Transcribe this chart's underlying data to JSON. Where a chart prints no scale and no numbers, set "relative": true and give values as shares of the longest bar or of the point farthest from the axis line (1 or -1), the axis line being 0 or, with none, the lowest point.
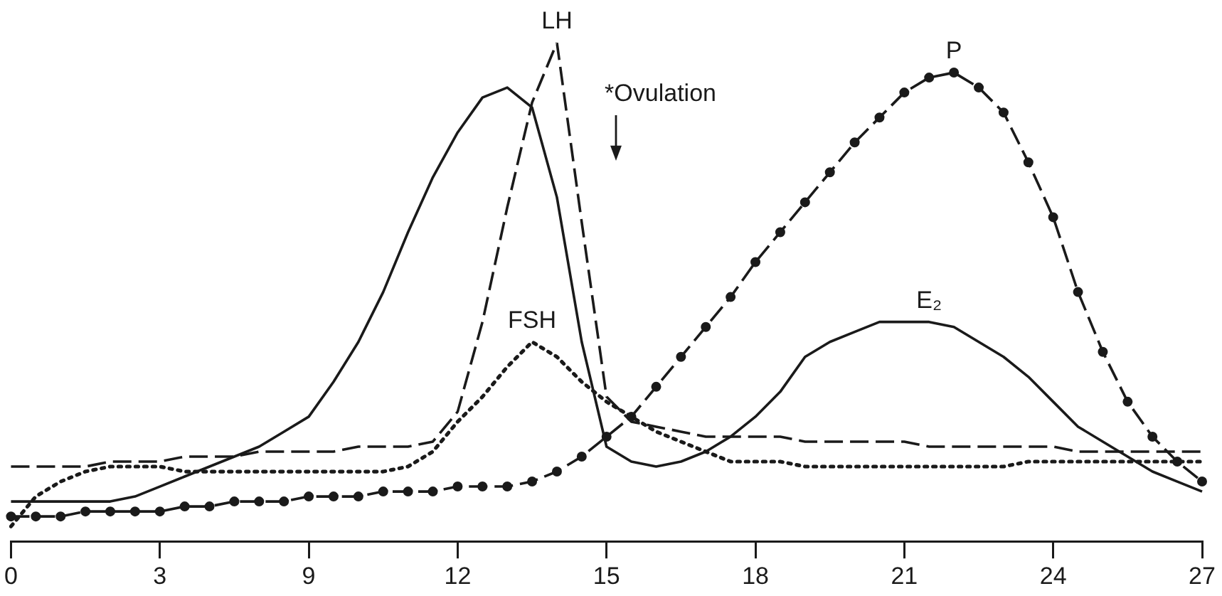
{
  "chart_data": {
    "type": "line",
    "relative": true,
    "grid": false,
    "legend": false,
    "tick_labels": "x",
    "categories": [
      "0",
      null,
      null,
      null,
      null,
      null,
      "3",
      null,
      null,
      null,
      null,
      null,
      "9",
      null,
      null,
      null,
      null,
      null,
      "12",
      null,
      null,
      null,
      null,
      null,
      "15",
      null,
      null,
      null,
      null,
      null,
      "18",
      null,
      null,
      null,
      null,
      null,
      "21",
      null,
      null,
      null,
      null,
      null,
      "24",
      null,
      null,
      null,
      null,
      null,
      "27"
    ],
    "annotations": [
      "*Ovulation"
    ],
    "series": [
      {
        "name": "E₂",
        "color": "#1a1a1a",
        "line_style": "solid",
        "marker": "none",
        "values": [
          0.08,
          0.08,
          0.08,
          0.08,
          0.08,
          0.09,
          0.11,
          0.13,
          0.15,
          0.17,
          0.19,
          0.22,
          0.25,
          0.32,
          0.4,
          0.5,
          0.62,
          0.73,
          0.82,
          0.89,
          0.91,
          0.87,
          0.69,
          0.4,
          0.19,
          0.16,
          0.15,
          0.16,
          0.18,
          0.21,
          0.25,
          0.3,
          0.37,
          0.4,
          0.42,
          0.44,
          0.44,
          0.44,
          0.43,
          0.4,
          0.37,
          0.33,
          0.28,
          0.23,
          0.2,
          0.17,
          0.14,
          0.12,
          0.1
        ]
      },
      {
        "name": "LH",
        "color": "#1a1a1a",
        "line_style": "dashed",
        "marker": "none",
        "values": [
          0.15,
          0.15,
          0.15,
          0.15,
          0.16,
          0.16,
          0.16,
          0.17,
          0.17,
          0.17,
          0.18,
          0.18,
          0.18,
          0.18,
          0.19,
          0.19,
          0.19,
          0.2,
          0.26,
          0.44,
          0.67,
          0.88,
          1,
          0.64,
          0.29,
          0.24,
          0.23,
          0.22,
          0.21,
          0.21,
          0.21,
          0.21,
          0.2,
          0.2,
          0.2,
          0.2,
          0.2,
          0.19,
          0.19,
          0.19,
          0.19,
          0.19,
          0.19,
          0.18,
          0.18,
          0.18,
          0.18,
          0.18,
          0.18
        ]
      },
      {
        "name": "FSH",
        "color": "#1a1a1a",
        "line_style": "dotted",
        "marker": "none",
        "values": [
          0.03,
          0.09,
          0.12,
          0.14,
          0.15,
          0.15,
          0.15,
          0.14,
          0.14,
          0.14,
          0.14,
          0.14,
          0.14,
          0.14,
          0.14,
          0.14,
          0.15,
          0.18,
          0.24,
          0.29,
          0.35,
          0.4,
          0.37,
          0.32,
          0.28,
          0.25,
          0.22,
          0.2,
          0.18,
          0.16,
          0.16,
          0.16,
          0.15,
          0.15,
          0.15,
          0.15,
          0.15,
          0.15,
          0.15,
          0.15,
          0.15,
          0.16,
          0.16,
          0.16,
          0.16,
          0.16,
          0.16,
          0.16,
          0.16
        ]
      },
      {
        "name": "P",
        "color": "#1a1a1a",
        "line_style": "dashed",
        "marker": "circle",
        "values": [
          0.05,
          0.05,
          0.05,
          0.06,
          0.06,
          0.06,
          0.06,
          0.07,
          0.07,
          0.08,
          0.08,
          0.08,
          0.09,
          0.09,
          0.09,
          0.1,
          0.1,
          0.1,
          0.11,
          0.11,
          0.11,
          0.12,
          0.14,
          0.17,
          0.21,
          0.25,
          0.31,
          0.37,
          0.43,
          0.49,
          0.56,
          0.62,
          0.68,
          0.74,
          0.8,
          0.85,
          0.9,
          0.93,
          0.94,
          0.91,
          0.86,
          0.76,
          0.65,
          0.5,
          0.38,
          0.28,
          0.21,
          0.16,
          0.12
        ]
      }
    ]
  }
}
